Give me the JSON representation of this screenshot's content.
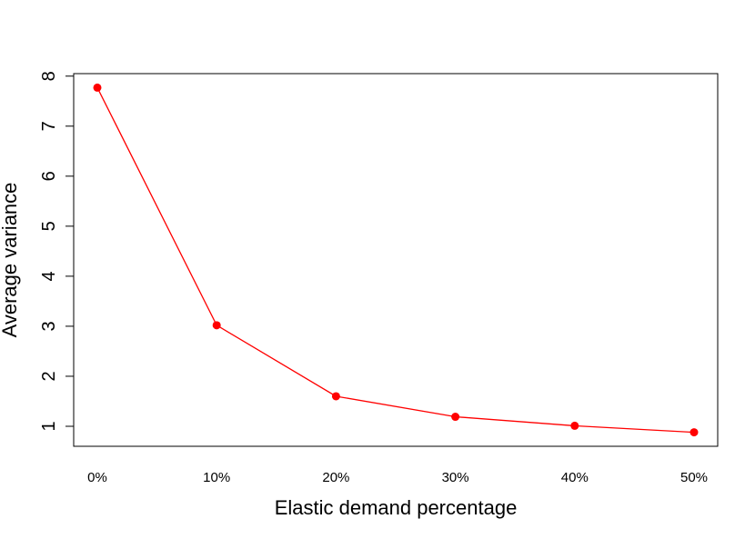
{
  "chart_data": {
    "type": "line",
    "title": "",
    "xlabel": "Elastic demand percentage",
    "ylabel": "Average variance",
    "categories": [
      "0%",
      "10%",
      "20%",
      "30%",
      "40%",
      "50%"
    ],
    "series": [
      {
        "values": [
          7.77,
          3.02,
          1.6,
          1.19,
          1.01,
          0.88
        ],
        "color": "#ff0000"
      }
    ],
    "y_ticks": [
      "1",
      "2",
      "3",
      "4",
      "5",
      "6",
      "7",
      "8"
    ],
    "ylim": [
      0.6,
      8.05
    ],
    "grid": false,
    "legend": "none"
  }
}
